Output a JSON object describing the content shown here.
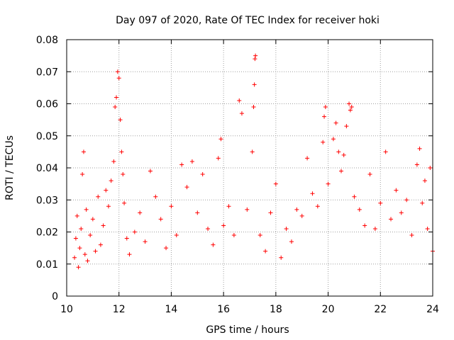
{
  "chart_data": {
    "type": "scatter",
    "title": "Day 097 of 2020, Rate Of TEC Index for receiver hoki",
    "xlabel": "GPS time / hours",
    "ylabel": "ROTI / TECUs",
    "xlim": [
      10,
      24
    ],
    "ylim": [
      0,
      0.08
    ],
    "x_ticks": [
      10,
      12,
      14,
      16,
      18,
      20,
      22,
      24
    ],
    "y_ticks": [
      0,
      0.01,
      0.02,
      0.03,
      0.04,
      0.05,
      0.06,
      0.07,
      0.08
    ],
    "x_tick_labels": [
      "10",
      "12",
      "14",
      "16",
      "18",
      "20",
      "22",
      "24"
    ],
    "y_tick_labels": [
      "0",
      "0.01",
      "0.02",
      "0.03",
      "0.04",
      "0.05",
      "0.06",
      "0.07",
      "0.08"
    ],
    "grid": true,
    "marker": "+",
    "color": "#ff0000",
    "series": [
      {
        "name": "ROTI",
        "points": [
          [
            10.3,
            0.012
          ],
          [
            10.35,
            0.018
          ],
          [
            10.4,
            0.025
          ],
          [
            10.45,
            0.009
          ],
          [
            10.5,
            0.015
          ],
          [
            10.55,
            0.021
          ],
          [
            10.6,
            0.038
          ],
          [
            10.65,
            0.045
          ],
          [
            10.7,
            0.013
          ],
          [
            10.75,
            0.027
          ],
          [
            10.8,
            0.011
          ],
          [
            10.9,
            0.019
          ],
          [
            11.0,
            0.024
          ],
          [
            11.1,
            0.014
          ],
          [
            11.2,
            0.031
          ],
          [
            11.3,
            0.016
          ],
          [
            11.4,
            0.022
          ],
          [
            11.5,
            0.033
          ],
          [
            11.6,
            0.028
          ],
          [
            11.7,
            0.036
          ],
          [
            11.8,
            0.042
          ],
          [
            11.85,
            0.059
          ],
          [
            11.9,
            0.062
          ],
          [
            11.95,
            0.07
          ],
          [
            12.0,
            0.068
          ],
          [
            12.05,
            0.055
          ],
          [
            12.1,
            0.045
          ],
          [
            12.15,
            0.038
          ],
          [
            12.2,
            0.029
          ],
          [
            12.3,
            0.018
          ],
          [
            12.4,
            0.013
          ],
          [
            12.6,
            0.02
          ],
          [
            12.8,
            0.026
          ],
          [
            13.0,
            0.017
          ],
          [
            13.2,
            0.039
          ],
          [
            13.4,
            0.031
          ],
          [
            13.6,
            0.024
          ],
          [
            13.8,
            0.015
          ],
          [
            14.0,
            0.028
          ],
          [
            14.2,
            0.019
          ],
          [
            14.4,
            0.041
          ],
          [
            14.6,
            0.034
          ],
          [
            14.8,
            0.042
          ],
          [
            15.0,
            0.026
          ],
          [
            15.2,
            0.038
          ],
          [
            15.4,
            0.021
          ],
          [
            15.6,
            0.016
          ],
          [
            15.8,
            0.043
          ],
          [
            15.9,
            0.049
          ],
          [
            16.0,
            0.022
          ],
          [
            16.2,
            0.028
          ],
          [
            16.4,
            0.019
          ],
          [
            16.6,
            0.061
          ],
          [
            16.7,
            0.057
          ],
          [
            16.9,
            0.027
          ],
          [
            17.1,
            0.045
          ],
          [
            17.15,
            0.059
          ],
          [
            17.18,
            0.066
          ],
          [
            17.2,
            0.074
          ],
          [
            17.22,
            0.075
          ],
          [
            17.4,
            0.019
          ],
          [
            17.6,
            0.014
          ],
          [
            17.8,
            0.026
          ],
          [
            18.0,
            0.035
          ],
          [
            18.2,
            0.012
          ],
          [
            18.4,
            0.021
          ],
          [
            18.6,
            0.017
          ],
          [
            18.8,
            0.027
          ],
          [
            19.0,
            0.025
          ],
          [
            19.2,
            0.043
          ],
          [
            19.4,
            0.032
          ],
          [
            19.6,
            0.028
          ],
          [
            19.8,
            0.048
          ],
          [
            19.85,
            0.056
          ],
          [
            19.9,
            0.059
          ],
          [
            20.0,
            0.035
          ],
          [
            20.2,
            0.049
          ],
          [
            20.3,
            0.054
          ],
          [
            20.4,
            0.045
          ],
          [
            20.5,
            0.039
          ],
          [
            20.6,
            0.044
          ],
          [
            20.7,
            0.053
          ],
          [
            20.8,
            0.06
          ],
          [
            20.85,
            0.058
          ],
          [
            20.9,
            0.059
          ],
          [
            21.0,
            0.031
          ],
          [
            21.2,
            0.027
          ],
          [
            21.4,
            0.022
          ],
          [
            21.6,
            0.038
          ],
          [
            21.8,
            0.021
          ],
          [
            22.0,
            0.029
          ],
          [
            22.2,
            0.045
          ],
          [
            22.4,
            0.024
          ],
          [
            22.6,
            0.033
          ],
          [
            22.8,
            0.026
          ],
          [
            23.0,
            0.03
          ],
          [
            23.2,
            0.019
          ],
          [
            23.4,
            0.041
          ],
          [
            23.5,
            0.046
          ],
          [
            23.6,
            0.029
          ],
          [
            23.7,
            0.036
          ],
          [
            23.8,
            0.021
          ],
          [
            23.9,
            0.04
          ],
          [
            24.0,
            0.014
          ]
        ]
      }
    ]
  }
}
